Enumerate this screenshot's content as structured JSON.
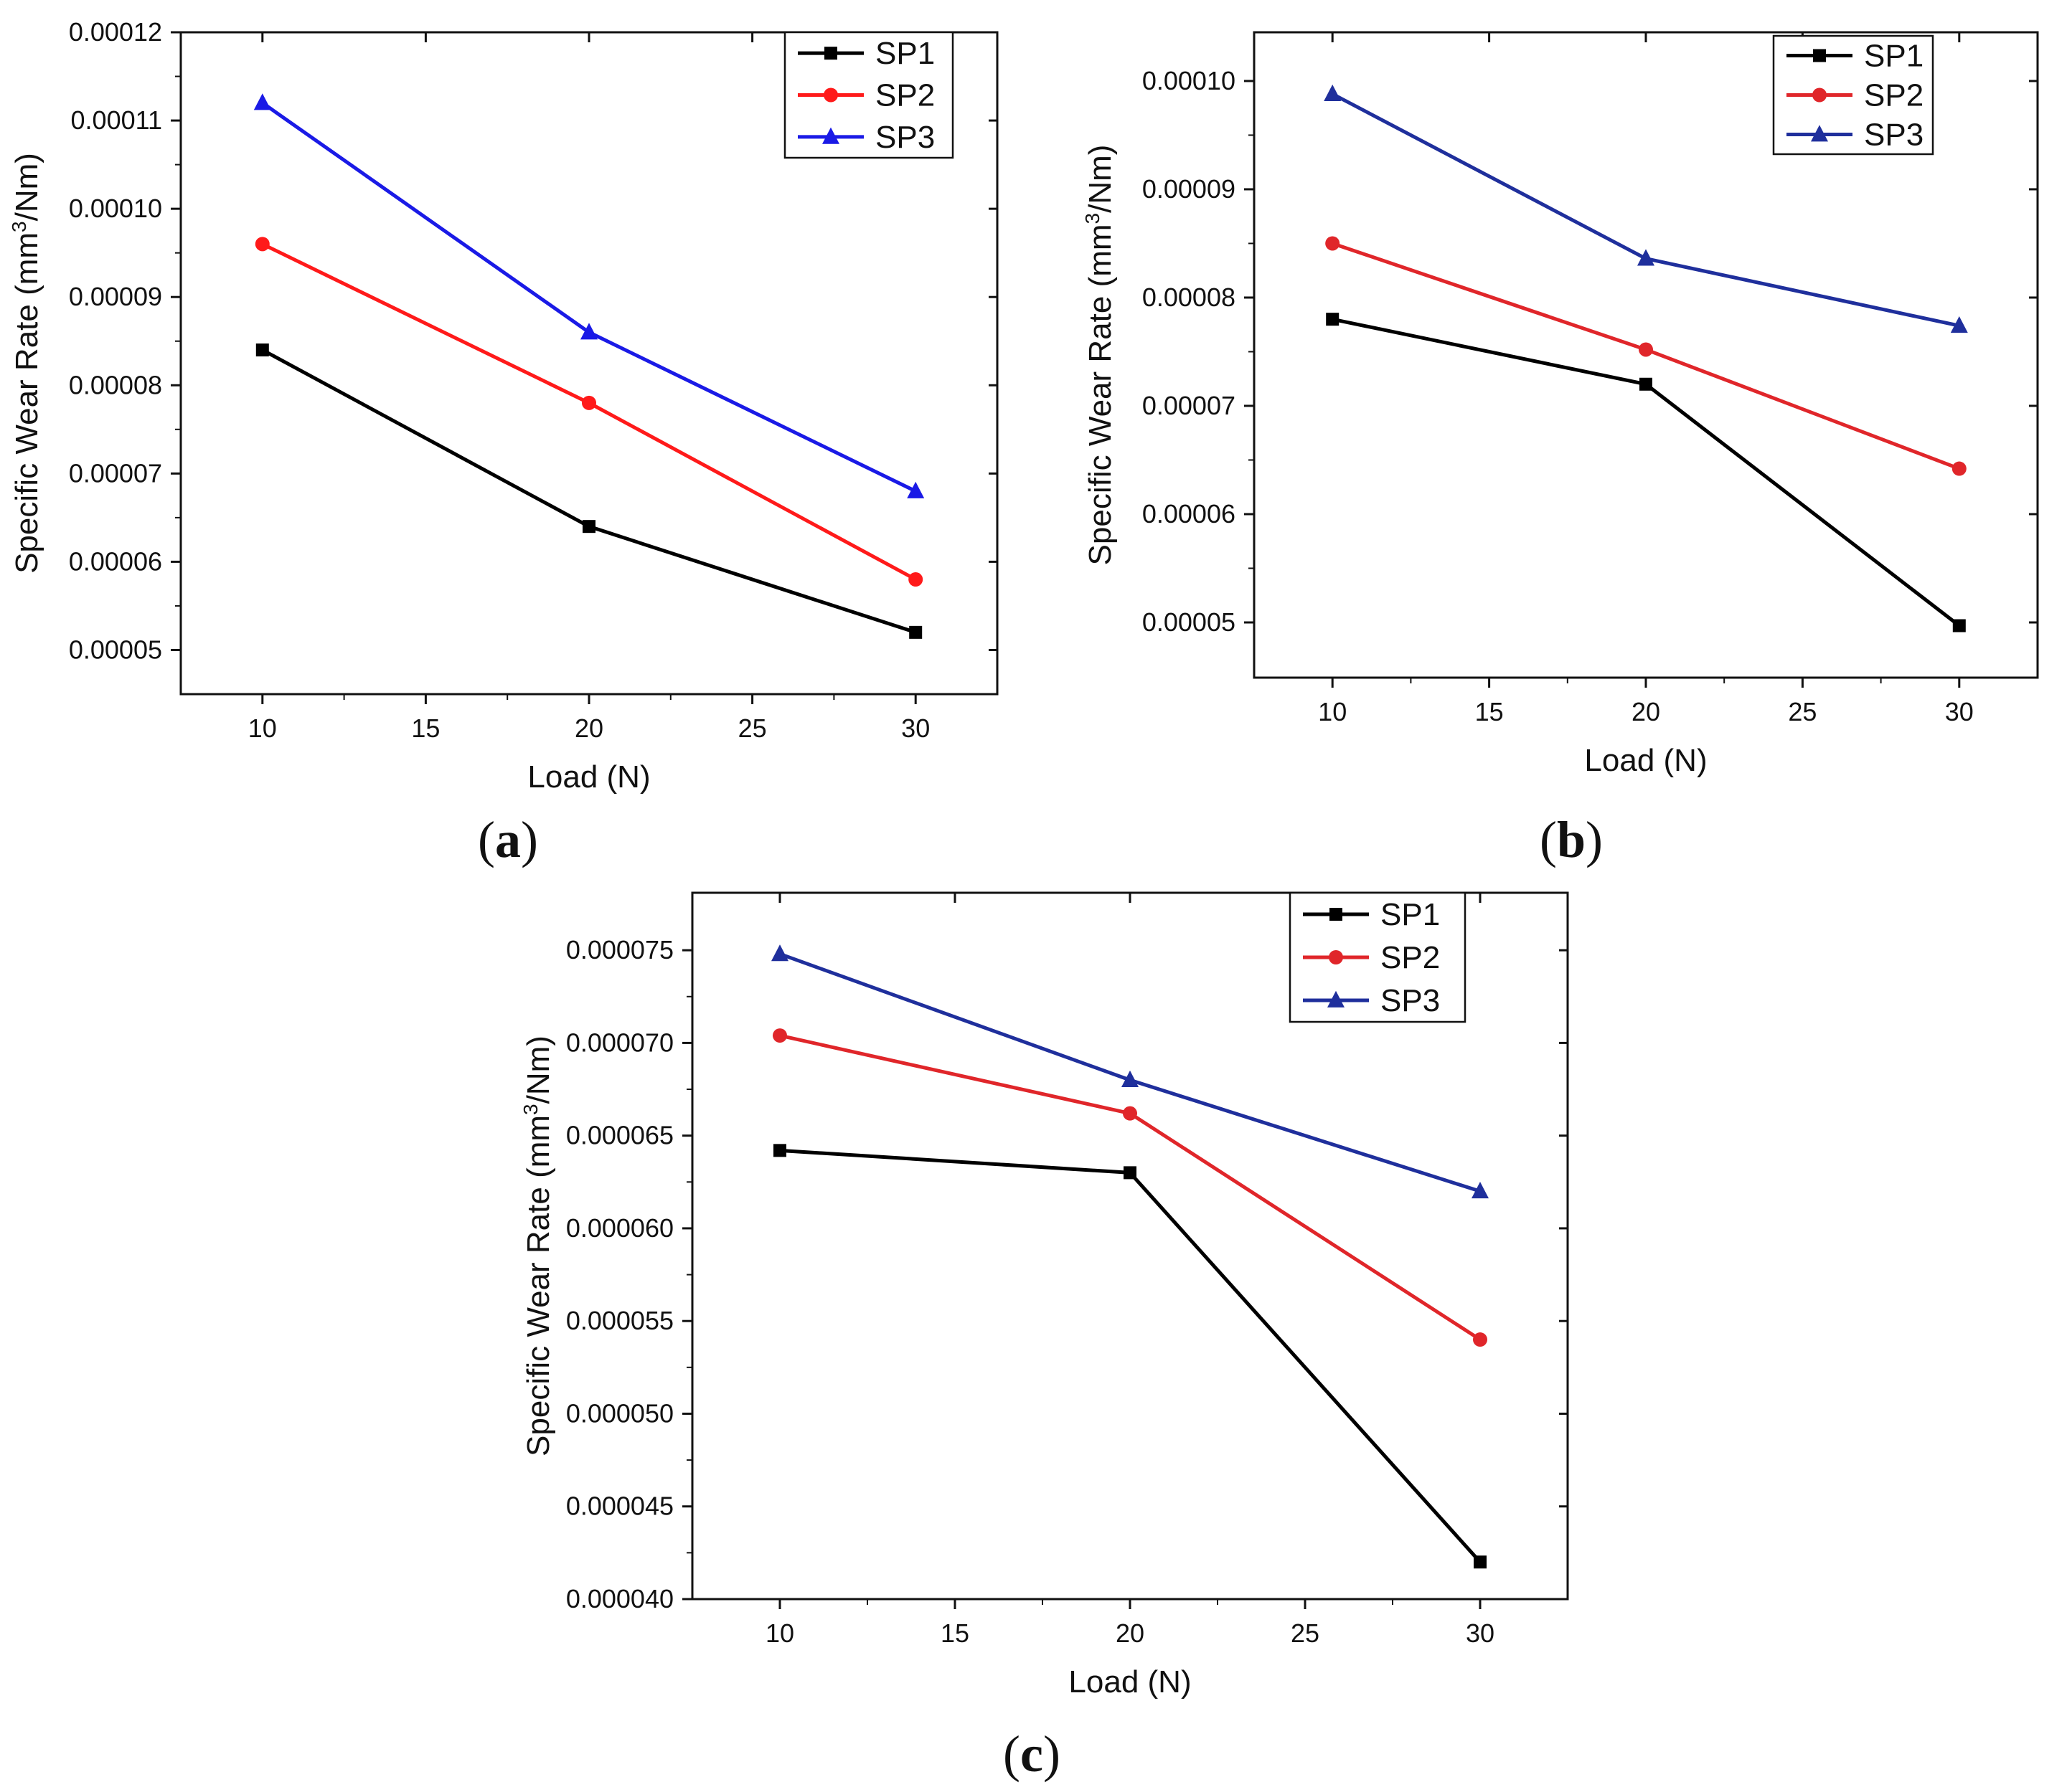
{
  "figure": {
    "label_open": "(",
    "label_close": ")"
  },
  "chart_data": [
    {
      "panel": "a",
      "type": "line",
      "title": "",
      "xlabel": "Load (N)",
      "ylabel_main": "Specific Wear Rate (mm",
      "ylabel_sup": "3",
      "ylabel_tail": "/Nm)",
      "x": [
        10,
        20,
        30
      ],
      "xlim": [
        7.5,
        32.5
      ],
      "xticks": [
        10,
        15,
        20,
        25,
        30
      ],
      "xtick_labels": [
        "10",
        "15",
        "20",
        "25",
        "30"
      ],
      "ylim": [
        4.5e-05,
        0.00012
      ],
      "yticks": [
        5e-05,
        6e-05,
        7e-05,
        8e-05,
        9e-05,
        0.0001,
        0.00011,
        0.00012
      ],
      "ytick_labels": [
        "0.00005",
        "0.00006",
        "0.00007",
        "0.00008",
        "0.00009",
        "0.00010",
        "0.00011",
        "0.00012"
      ],
      "grid": false,
      "legend": "top-right",
      "series": [
        {
          "name": "SP1",
          "color": "#000000",
          "marker": "square",
          "values": [
            8.4e-05,
            6.4e-05,
            5.2e-05
          ]
        },
        {
          "name": "SP2",
          "color": "#ff1a1a",
          "marker": "circle",
          "values": [
            9.6e-05,
            7.8e-05,
            5.8e-05
          ]
        },
        {
          "name": "SP3",
          "color": "#1a1ae6",
          "marker": "triangle",
          "values": [
            0.000112,
            8.6e-05,
            6.8e-05
          ]
        }
      ]
    },
    {
      "panel": "b",
      "type": "line",
      "title": "",
      "xlabel": "Load (N)",
      "ylabel_main": "Specific Wear Rate (mm",
      "ylabel_sup": "3",
      "ylabel_tail": "/Nm)",
      "x": [
        10,
        20,
        30
      ],
      "xlim": [
        7.5,
        32.5
      ],
      "xticks": [
        10,
        15,
        20,
        25,
        30
      ],
      "xtick_labels": [
        "10",
        "15",
        "20",
        "25",
        "30"
      ],
      "ylim": [
        4.49e-05,
        0.0001045
      ],
      "yticks": [
        5e-05,
        6e-05,
        7e-05,
        8e-05,
        9e-05,
        0.0001
      ],
      "ytick_labels": [
        "0.00005",
        "0.00006",
        "0.00007",
        "0.00008",
        "0.00009",
        "0.00010"
      ],
      "grid": false,
      "legend": "top-right",
      "series": [
        {
          "name": "SP1",
          "color": "#000000",
          "marker": "square",
          "values": [
            7.8e-05,
            7.2e-05,
            4.97e-05
          ]
        },
        {
          "name": "SP2",
          "color": "#e0262a",
          "marker": "circle",
          "values": [
            8.5e-05,
            7.52e-05,
            6.42e-05
          ]
        },
        {
          "name": "SP3",
          "color": "#1f2f9c",
          "marker": "triangle",
          "values": [
            9.88e-05,
            8.36e-05,
            7.74e-05
          ]
        }
      ]
    },
    {
      "panel": "c",
      "type": "line",
      "title": "",
      "xlabel": "Load (N)",
      "ylabel_main": "Specific Wear Rate (mm",
      "ylabel_sup": "3",
      "ylabel_tail": "/Nm)",
      "x": [
        10,
        20,
        30
      ],
      "xlim": [
        7.5,
        32.5
      ],
      "xticks": [
        10,
        15,
        20,
        25,
        30
      ],
      "xtick_labels": [
        "10",
        "15",
        "20",
        "25",
        "30"
      ],
      "ylim": [
        4e-05,
        7.81e-05
      ],
      "yticks": [
        4e-05,
        4.5e-05,
        5e-05,
        5.5e-05,
        6e-05,
        6.5e-05,
        7e-05,
        7.5e-05
      ],
      "ytick_labels": [
        "0.000040",
        "0.000045",
        "0.000050",
        "0.000055",
        "0.000060",
        "0.000065",
        "0.000070",
        "0.000075"
      ],
      "grid": false,
      "legend": "top-right",
      "series": [
        {
          "name": "SP1",
          "color": "#000000",
          "marker": "square",
          "values": [
            6.42e-05,
            6.3e-05,
            4.2e-05
          ]
        },
        {
          "name": "SP2",
          "color": "#e0262a",
          "marker": "circle",
          "values": [
            7.04e-05,
            6.62e-05,
            5.4e-05
          ]
        },
        {
          "name": "SP3",
          "color": "#1f2f9c",
          "marker": "triangle",
          "values": [
            7.48e-05,
            6.8e-05,
            6.2e-05
          ]
        }
      ]
    }
  ]
}
